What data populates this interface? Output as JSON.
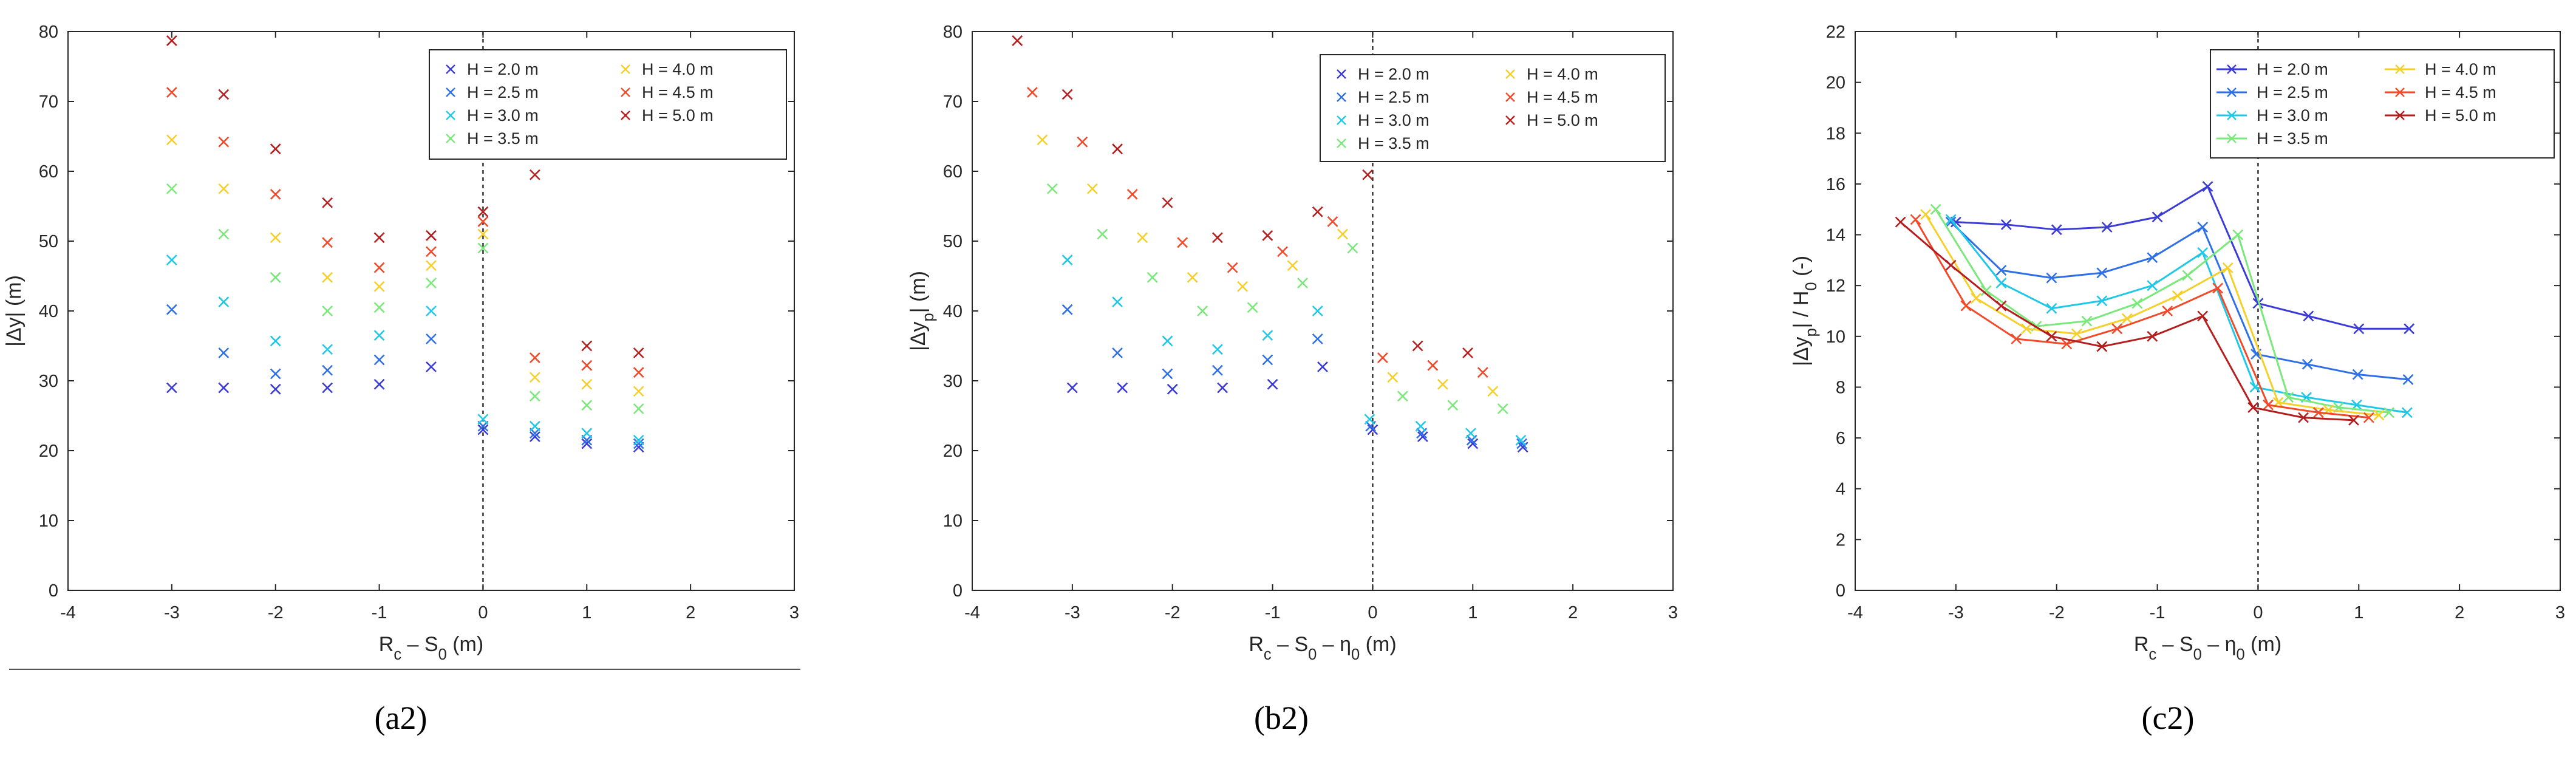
{
  "captions": [
    "(a2)",
    "(b2)",
    "(c2)"
  ],
  "legend_labels": [
    "H = 2.0 m",
    "H = 2.5 m",
    "H = 3.0 m",
    "H = 3.5 m",
    "H = 4.0 m",
    "H = 4.5 m",
    "H = 5.0 m"
  ],
  "series_colors": [
    "#3b3bd6",
    "#2f6fe6",
    "#20c8e8",
    "#7ae87a",
    "#f5cf2a",
    "#f04a2a",
    "#b41e1e"
  ],
  "chart_data": [
    {
      "type": "scatter",
      "xlabel": "R c – S 0 (m)",
      "ylabel": "|Δy| (m)",
      "xlim": [
        -4,
        3
      ],
      "ylim": [
        0,
        80
      ],
      "xticks": [
        -4,
        -3,
        -2,
        -1,
        0,
        1,
        2,
        3
      ],
      "yticks": [
        0,
        10,
        20,
        30,
        40,
        50,
        60,
        70,
        80
      ],
      "legend_position": "top-right",
      "reference_line_x": 0,
      "series": [
        {
          "name": "H = 2.0 m",
          "x": [
            -3,
            -2.5,
            -2,
            -1.5,
            -1,
            -0.5,
            0,
            0.5,
            1,
            1.5
          ],
          "y": [
            29,
            29,
            28.8,
            29,
            29.5,
            32,
            23,
            22,
            21,
            20.5
          ]
        },
        {
          "name": "H = 2.5 m",
          "x": [
            -3,
            -2.5,
            -2,
            -1.5,
            -1,
            -0.5,
            0,
            0.5,
            1,
            1.5
          ],
          "y": [
            40.2,
            34,
            31,
            31.5,
            33,
            36,
            23.5,
            22.5,
            21.5,
            21
          ]
        },
        {
          "name": "H = 3.0 m",
          "x": [
            -3,
            -2.5,
            -2,
            -1.5,
            -1,
            -0.5,
            0,
            0.5,
            1,
            1.5
          ],
          "y": [
            47.3,
            41.3,
            35.7,
            34.5,
            36.5,
            40,
            24.5,
            23.5,
            22.5,
            21.5
          ]
        },
        {
          "name": "H = 3.5 m",
          "x": [
            -3,
            -2.5,
            -2,
            -1.5,
            -1,
            -0.5,
            0,
            0.5,
            1,
            1.5
          ],
          "y": [
            57.5,
            51,
            44.8,
            40,
            40.5,
            44,
            49,
            27.8,
            26.5,
            26
          ]
        },
        {
          "name": "H = 4.0 m",
          "x": [
            -3,
            -2.5,
            -2,
            -1.5,
            -1,
            -0.5,
            0,
            0.5,
            1,
            1.5
          ],
          "y": [
            64.5,
            57.5,
            50.5,
            44.8,
            43.5,
            46.5,
            51,
            30.5,
            29.5,
            28.5
          ]
        },
        {
          "name": "H = 4.5 m",
          "x": [
            -3,
            -2.5,
            -2,
            -1.5,
            -1,
            -0.5,
            0,
            0.5,
            1,
            1.5
          ],
          "y": [
            71.3,
            64.2,
            56.7,
            49.8,
            46.2,
            48.5,
            52.8,
            33.3,
            32.2,
            31.2
          ]
        },
        {
          "name": "H = 5.0 m",
          "x": [
            -3,
            -2.5,
            -2,
            -1.5,
            -1,
            -0.5,
            0,
            0.5,
            1,
            1.5
          ],
          "y": [
            78.7,
            71,
            63.2,
            55.5,
            50.5,
            50.8,
            54.2,
            59.5,
            35,
            34
          ]
        }
      ]
    },
    {
      "type": "scatter",
      "xlabel": "R c – S 0 – η 0 (m)",
      "ylabel": "|Δy p| (m)",
      "xlim": [
        -4,
        3
      ],
      "ylim": [
        0,
        80
      ],
      "xticks": [
        -4,
        -3,
        -2,
        -1,
        0,
        1,
        2,
        3
      ],
      "yticks": [
        0,
        10,
        20,
        30,
        40,
        50,
        60,
        70,
        80
      ],
      "legend_position": "top-right",
      "reference_line_x": 0,
      "series": [
        {
          "name": "H = 2.0 m",
          "x": [
            -3,
            -2.5,
            -2,
            -1.5,
            -1,
            -0.5,
            0,
            0.5,
            1,
            1.5
          ],
          "y": [
            29,
            29,
            28.8,
            29,
            29.5,
            32,
            23,
            22,
            21,
            20.5
          ]
        },
        {
          "name": "H = 2.5 m",
          "x": [
            -3.05,
            -2.55,
            -2.05,
            -1.55,
            -1.05,
            -0.55,
            -0.02,
            0.49,
            0.99,
            1.49
          ],
          "y": [
            40.2,
            34,
            31,
            31.5,
            33,
            36,
            23.5,
            22.5,
            21.5,
            21
          ]
        },
        {
          "name": "H = 3.0 m",
          "x": [
            -3.05,
            -2.55,
            -2.05,
            -1.55,
            -1.05,
            -0.55,
            -0.03,
            0.48,
            0.98,
            1.48
          ],
          "y": [
            47.3,
            41.3,
            35.7,
            34.5,
            36.5,
            40,
            24.5,
            23.5,
            22.5,
            21.5
          ]
        },
        {
          "name": "H = 3.5 m",
          "x": [
            -3.2,
            -2.7,
            -2.2,
            -1.7,
            -1.2,
            -0.7,
            -0.2,
            0.3,
            0.8,
            1.3
          ],
          "y": [
            57.5,
            51,
            44.8,
            40,
            40.5,
            44,
            49,
            27.8,
            26.5,
            26
          ]
        },
        {
          "name": "H = 4.0 m",
          "x": [
            -3.3,
            -2.8,
            -2.3,
            -1.8,
            -1.3,
            -0.8,
            -0.3,
            0.2,
            0.7,
            1.2
          ],
          "y": [
            64.5,
            57.5,
            50.5,
            44.8,
            43.5,
            46.5,
            51,
            30.5,
            29.5,
            28.5
          ]
        },
        {
          "name": "H = 4.5 m",
          "x": [
            -3.4,
            -2.9,
            -2.4,
            -1.9,
            -1.4,
            -0.9,
            -0.4,
            0.1,
            0.6,
            1.1
          ],
          "y": [
            71.3,
            64.2,
            56.7,
            49.8,
            46.2,
            48.5,
            52.8,
            33.3,
            32.2,
            31.2
          ]
        },
        {
          "name": "H = 5.0 m",
          "x": [
            -3.55,
            -3.05,
            -2.55,
            -2.05,
            -1.55,
            -1.05,
            -0.55,
            -0.05,
            0.45,
            0.95
          ],
          "y": [
            78.7,
            71,
            63.2,
            55.5,
            50.5,
            50.8,
            54.2,
            59.5,
            35,
            34
          ]
        }
      ]
    },
    {
      "type": "line",
      "xlabel": "R c – S 0 – η 0 (m)",
      "ylabel": "|Δy p| / H 0 (-)",
      "xlim": [
        -4,
        3
      ],
      "ylim": [
        0,
        22
      ],
      "xticks": [
        -4,
        -3,
        -2,
        -1,
        0,
        1,
        2,
        3
      ],
      "yticks": [
        0,
        2,
        4,
        6,
        8,
        10,
        12,
        14,
        16,
        18,
        20,
        22
      ],
      "legend_position": "top-right",
      "reference_line_x": 0,
      "series": [
        {
          "name": "H = 2.0 m",
          "x": [
            -3,
            -2.5,
            -2,
            -1.5,
            -1,
            -0.5,
            0,
            0.5,
            1,
            1.5
          ],
          "y": [
            14.5,
            14.4,
            14.2,
            14.3,
            14.7,
            15.9,
            11.3,
            10.8,
            10.3,
            10.3
          ]
        },
        {
          "name": "H = 2.5 m",
          "x": [
            -3.05,
            -2.55,
            -2.05,
            -1.55,
            -1.05,
            -0.55,
            -0.02,
            0.49,
            0.99,
            1.49
          ],
          "y": [
            14.5,
            12.6,
            12.3,
            12.5,
            13.1,
            14.3,
            9.3,
            8.9,
            8.5,
            8.3
          ]
        },
        {
          "name": "H = 3.0 m",
          "x": [
            -3.05,
            -2.55,
            -2.05,
            -1.55,
            -1.05,
            -0.55,
            -0.03,
            0.48,
            0.98,
            1.48
          ],
          "y": [
            14.6,
            12.1,
            11.1,
            11.4,
            12.0,
            13.3,
            8.0,
            7.6,
            7.3,
            7.0
          ]
        },
        {
          "name": "H = 3.5 m",
          "x": [
            -3.2,
            -2.7,
            -2.2,
            -1.7,
            -1.2,
            -0.7,
            -0.2,
            0.3,
            0.8,
            1.3
          ],
          "y": [
            15.0,
            11.8,
            10.4,
            10.6,
            11.3,
            12.4,
            14.0,
            7.6,
            7.2,
            7.0
          ]
        },
        {
          "name": "H = 4.0 m",
          "x": [
            -3.3,
            -2.8,
            -2.3,
            -1.8,
            -1.3,
            -0.8,
            -0.3,
            0.2,
            0.7,
            1.2
          ],
          "y": [
            14.8,
            11.5,
            10.3,
            10.1,
            10.7,
            11.6,
            12.7,
            7.4,
            7.1,
            6.9
          ]
        },
        {
          "name": "H = 4.5 m",
          "x": [
            -3.4,
            -2.9,
            -2.4,
            -1.9,
            -1.4,
            -0.9,
            -0.4,
            0.1,
            0.6,
            1.1
          ],
          "y": [
            14.6,
            11.2,
            9.9,
            9.7,
            10.3,
            11.0,
            11.9,
            7.3,
            7.0,
            6.8
          ]
        },
        {
          "name": "H = 5.0 m",
          "x": [
            -3.55,
            -3.05,
            -2.55,
            -2.05,
            -1.55,
            -1.05,
            -0.55,
            -0.05,
            0.45,
            0.95
          ],
          "y": [
            14.5,
            12.8,
            11.2,
            10.0,
            9.6,
            10.0,
            10.8,
            7.2,
            6.8,
            6.7
          ]
        }
      ]
    }
  ]
}
